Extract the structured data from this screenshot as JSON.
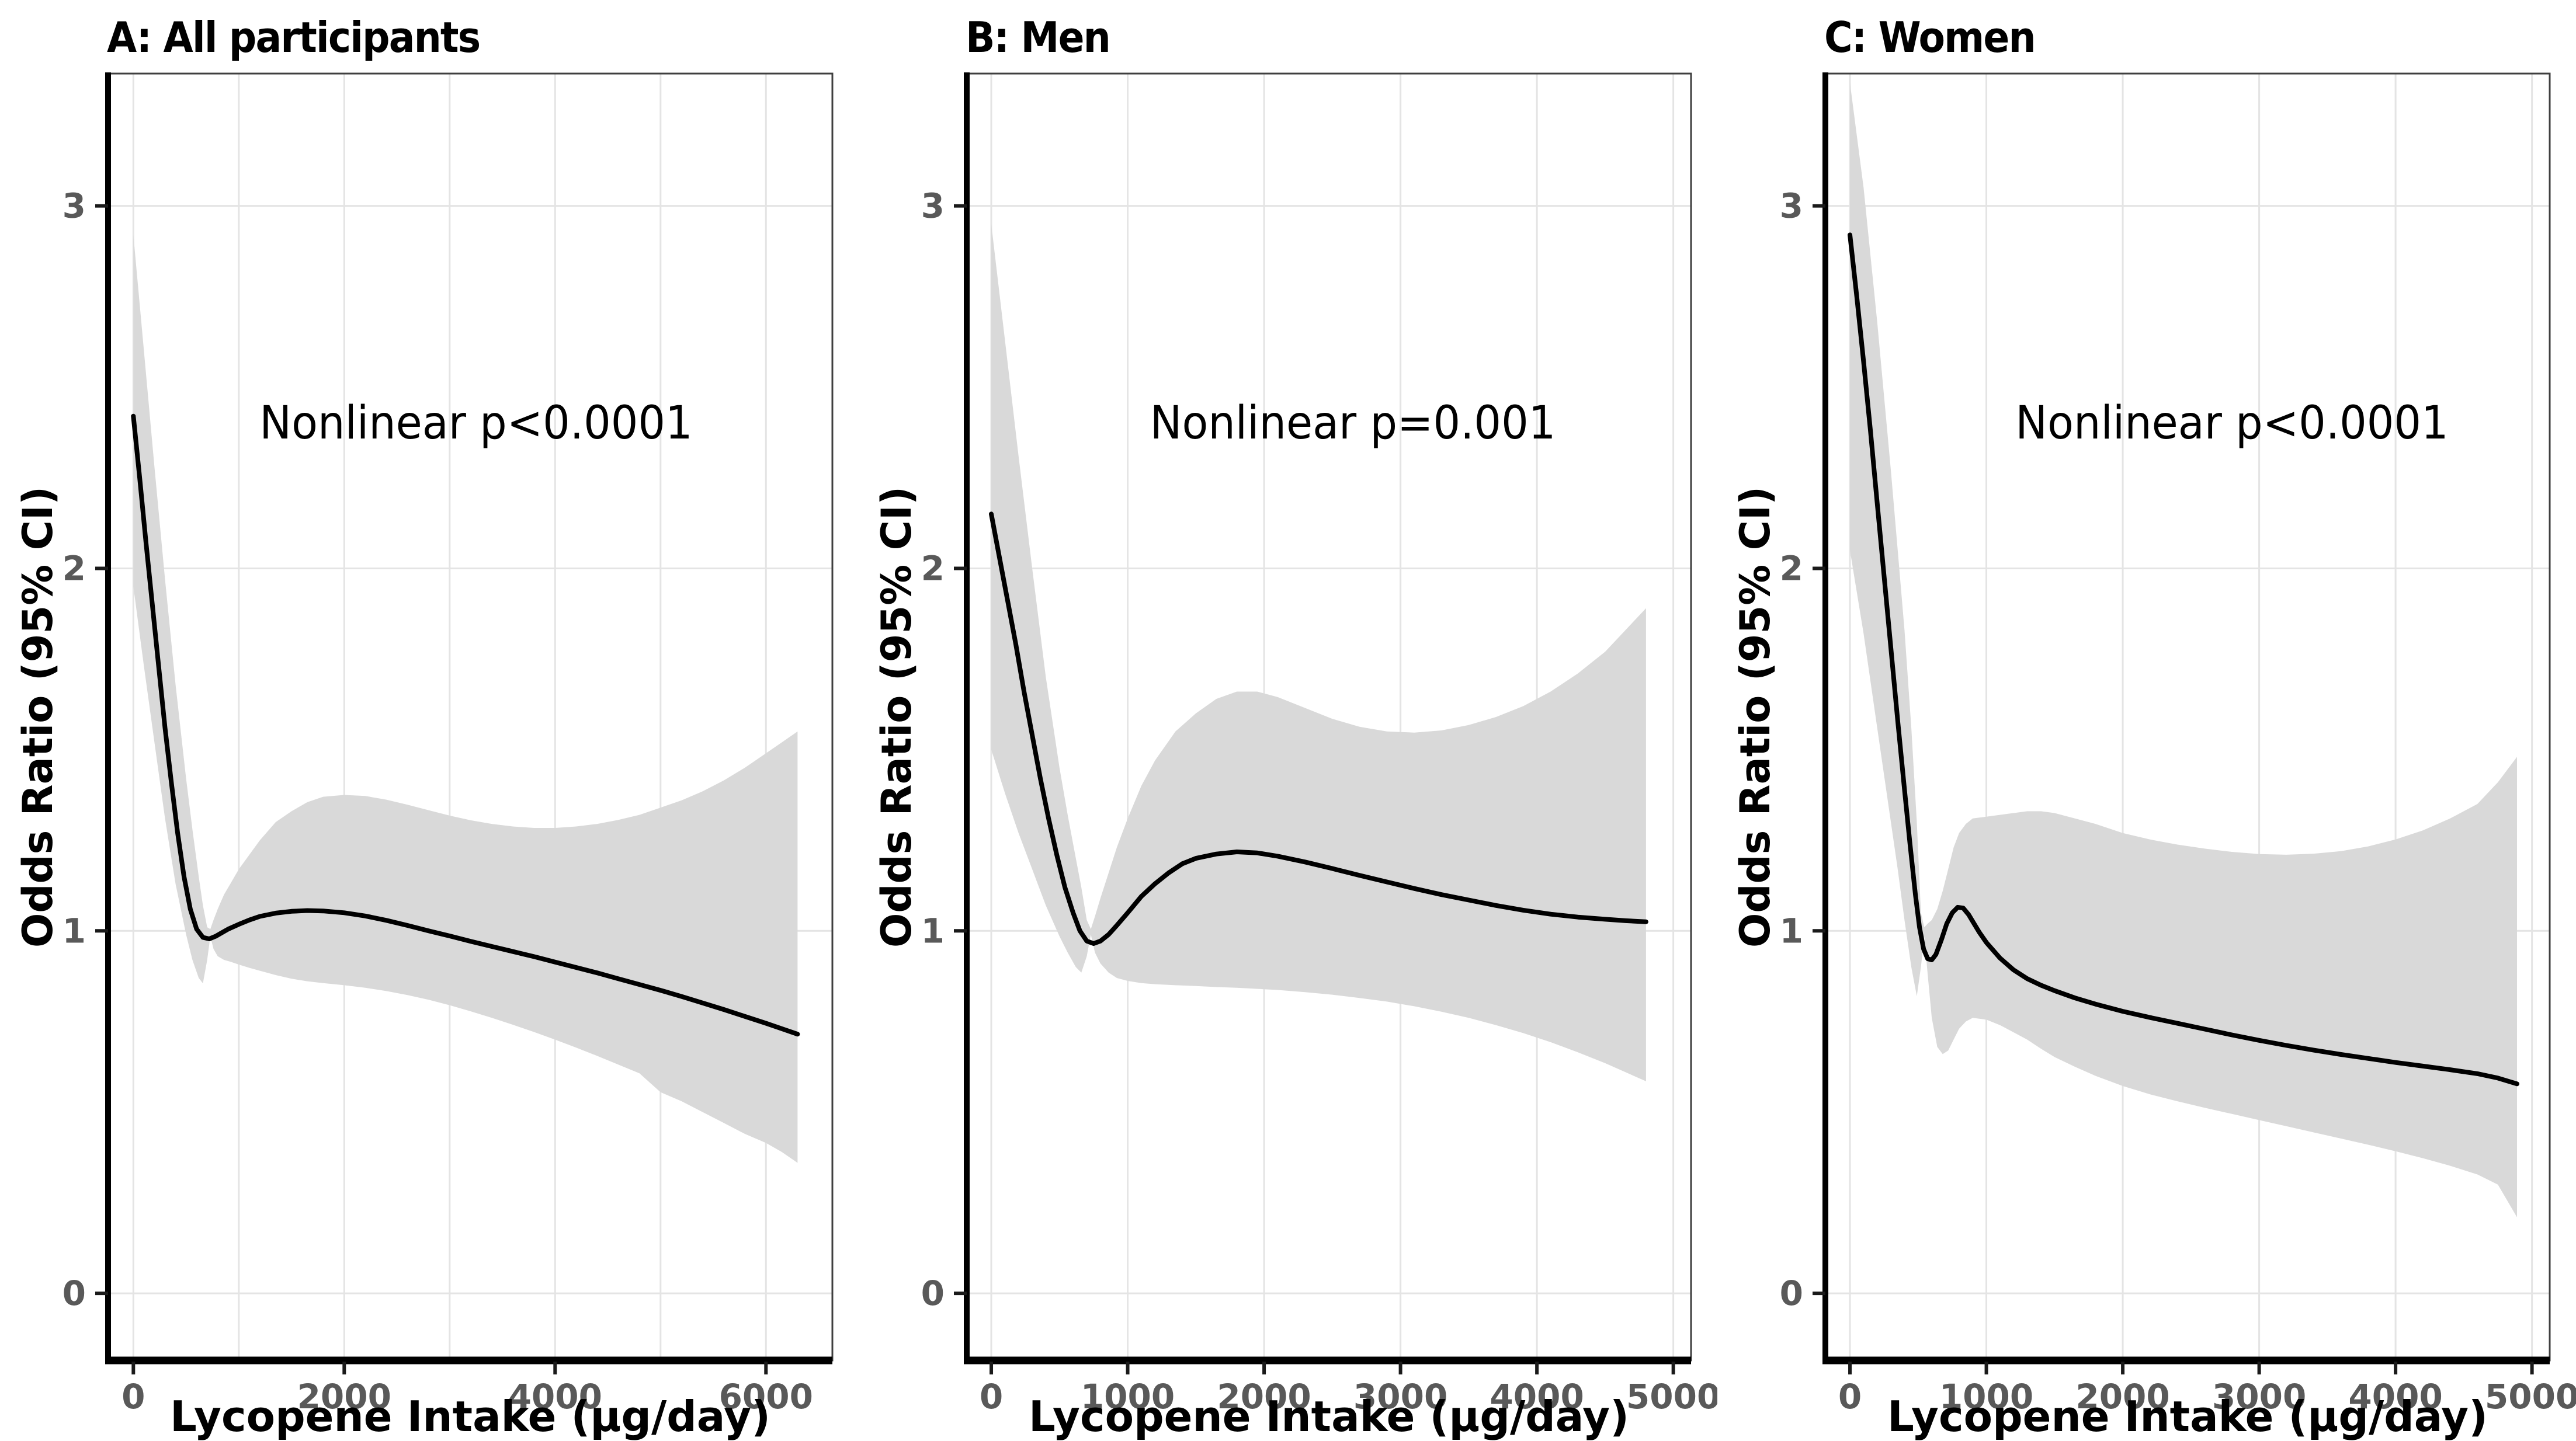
{
  "figure": {
    "x_axis_label": "Lycopene Intake (μg/day)",
    "y_axis_label": "Odds Ratio (95% CI)",
    "colors": {
      "curve": "#000000",
      "ci_band": "#d9d9d9",
      "grid": "#e4e4e4",
      "panel_border": "#3f3f3f",
      "axis": "#000000",
      "tick": "#1a1a1a",
      "tick_label": "#595959"
    }
  },
  "chart_data": [
    {
      "type": "line",
      "title": "A: All participants",
      "annotation": {
        "text": "Nonlinear p<0.0001",
        "x": 3250,
        "y": 2.4
      },
      "xlabel": "Lycopene Intake (μg/day)",
      "ylabel": "Odds Ratio (95% CI)",
      "x_ticks": [
        0,
        2000,
        4000,
        6000
      ],
      "x_gridlines": [
        0,
        1000,
        2000,
        3000,
        4000,
        5000,
        6000
      ],
      "y_ticks": [
        0,
        1,
        2,
        3
      ],
      "xlim": [
        -240,
        6630
      ],
      "ylim": [
        -0.185,
        3.365
      ],
      "grid": true,
      "legend": "none",
      "curve": [
        [
          0,
          2.42
        ],
        [
          60,
          2.25
        ],
        [
          120,
          2.07
        ],
        [
          180,
          1.9
        ],
        [
          240,
          1.73
        ],
        [
          300,
          1.56
        ],
        [
          360,
          1.41
        ],
        [
          420,
          1.27
        ],
        [
          480,
          1.15
        ],
        [
          540,
          1.06
        ],
        [
          600,
          1.005
        ],
        [
          660,
          0.982
        ],
        [
          720,
          0.978
        ],
        [
          780,
          0.985
        ],
        [
          840,
          0.995
        ],
        [
          900,
          1.005
        ],
        [
          1000,
          1.018
        ],
        [
          1100,
          1.03
        ],
        [
          1200,
          1.04
        ],
        [
          1350,
          1.049
        ],
        [
          1500,
          1.054
        ],
        [
          1650,
          1.056
        ],
        [
          1800,
          1.055
        ],
        [
          2000,
          1.05
        ],
        [
          2200,
          1.041
        ],
        [
          2400,
          1.029
        ],
        [
          2600,
          1.015
        ],
        [
          2800,
          1.0
        ],
        [
          3000,
          0.986
        ],
        [
          3200,
          0.971
        ],
        [
          3400,
          0.957
        ],
        [
          3600,
          0.943
        ],
        [
          3800,
          0.929
        ],
        [
          4000,
          0.914
        ],
        [
          4200,
          0.899
        ],
        [
          4400,
          0.884
        ],
        [
          4600,
          0.868
        ],
        [
          4800,
          0.852
        ],
        [
          5000,
          0.836
        ],
        [
          5200,
          0.819
        ],
        [
          5400,
          0.801
        ],
        [
          5600,
          0.783
        ],
        [
          5800,
          0.764
        ],
        [
          6000,
          0.745
        ],
        [
          6150,
          0.73
        ],
        [
          6300,
          0.715
        ]
      ],
      "ci": [
        [
          0,
          1.95,
          2.92
        ],
        [
          100,
          1.73,
          2.6
        ],
        [
          200,
          1.52,
          2.28
        ],
        [
          300,
          1.31,
          1.97
        ],
        [
          400,
          1.13,
          1.68
        ],
        [
          500,
          0.99,
          1.42
        ],
        [
          560,
          0.92,
          1.28
        ],
        [
          620,
          0.87,
          1.15
        ],
        [
          660,
          0.855,
          1.07
        ],
        [
          700,
          0.92,
          1.01
        ],
        [
          730,
          0.985,
          1.005
        ],
        [
          760,
          0.95,
          1.03
        ],
        [
          800,
          0.93,
          1.06
        ],
        [
          860,
          0.92,
          1.1
        ],
        [
          920,
          0.915,
          1.13
        ],
        [
          1000,
          0.907,
          1.17
        ],
        [
          1100,
          0.898,
          1.21
        ],
        [
          1200,
          0.89,
          1.25
        ],
        [
          1350,
          0.878,
          1.3
        ],
        [
          1500,
          0.868,
          1.33
        ],
        [
          1650,
          0.861,
          1.355
        ],
        [
          1800,
          0.856,
          1.37
        ],
        [
          2000,
          0.85,
          1.375
        ],
        [
          2200,
          0.843,
          1.372
        ],
        [
          2400,
          0.834,
          1.362
        ],
        [
          2600,
          0.823,
          1.348
        ],
        [
          2800,
          0.81,
          1.333
        ],
        [
          3000,
          0.795,
          1.318
        ],
        [
          3200,
          0.778,
          1.305
        ],
        [
          3400,
          0.76,
          1.295
        ],
        [
          3600,
          0.741,
          1.288
        ],
        [
          3800,
          0.721,
          1.284
        ],
        [
          4000,
          0.7,
          1.284
        ],
        [
          4200,
          0.678,
          1.288
        ],
        [
          4400,
          0.655,
          1.295
        ],
        [
          4600,
          0.631,
          1.306
        ],
        [
          4800,
          0.607,
          1.32
        ],
        [
          5000,
          0.555,
          1.34
        ],
        [
          5200,
          0.53,
          1.36
        ],
        [
          5400,
          0.5,
          1.385
        ],
        [
          5600,
          0.47,
          1.415
        ],
        [
          5800,
          0.44,
          1.45
        ],
        [
          6000,
          0.415,
          1.49
        ],
        [
          6150,
          0.39,
          1.52
        ],
        [
          6300,
          0.36,
          1.55
        ]
      ]
    },
    {
      "type": "line",
      "title": "B: Men",
      "annotation": {
        "text": "Nonlinear p=0.001",
        "x": 2650,
        "y": 2.4
      },
      "xlabel": "Lycopene Intake (μg/day)",
      "ylabel": "Odds Ratio (95% CI)",
      "x_ticks": [
        0,
        1000,
        2000,
        3000,
        4000,
        5000
      ],
      "x_gridlines": [
        0,
        1000,
        2000,
        3000,
        4000,
        5000
      ],
      "y_ticks": [
        0,
        1,
        2,
        3
      ],
      "xlim": [
        -180,
        5130
      ],
      "ylim": [
        -0.185,
        3.365
      ],
      "grid": true,
      "legend": "none",
      "curve": [
        [
          0,
          2.15
        ],
        [
          60,
          2.03
        ],
        [
          120,
          1.91
        ],
        [
          180,
          1.79
        ],
        [
          240,
          1.66
        ],
        [
          300,
          1.54
        ],
        [
          360,
          1.42
        ],
        [
          420,
          1.31
        ],
        [
          480,
          1.21
        ],
        [
          540,
          1.12
        ],
        [
          600,
          1.05
        ],
        [
          650,
          1.0
        ],
        [
          700,
          0.972
        ],
        [
          750,
          0.965
        ],
        [
          800,
          0.972
        ],
        [
          860,
          0.99
        ],
        [
          920,
          1.015
        ],
        [
          1000,
          1.05
        ],
        [
          1100,
          1.095
        ],
        [
          1200,
          1.13
        ],
        [
          1300,
          1.16
        ],
        [
          1400,
          1.185
        ],
        [
          1500,
          1.2
        ],
        [
          1650,
          1.212
        ],
        [
          1800,
          1.218
        ],
        [
          1950,
          1.215
        ],
        [
          2100,
          1.206
        ],
        [
          2300,
          1.19
        ],
        [
          2500,
          1.172
        ],
        [
          2700,
          1.153
        ],
        [
          2900,
          1.135
        ],
        [
          3100,
          1.117
        ],
        [
          3300,
          1.1
        ],
        [
          3500,
          1.085
        ],
        [
          3700,
          1.07
        ],
        [
          3900,
          1.057
        ],
        [
          4100,
          1.046
        ],
        [
          4300,
          1.038
        ],
        [
          4500,
          1.032
        ],
        [
          4650,
          1.028
        ],
        [
          4800,
          1.025
        ]
      ],
      "ci": [
        [
          0,
          1.5,
          2.95
        ],
        [
          100,
          1.38,
          2.63
        ],
        [
          200,
          1.27,
          2.31
        ],
        [
          300,
          1.17,
          2.0
        ],
        [
          400,
          1.07,
          1.7
        ],
        [
          500,
          0.985,
          1.45
        ],
        [
          560,
          0.94,
          1.32
        ],
        [
          620,
          0.9,
          1.2
        ],
        [
          660,
          0.885,
          1.12
        ],
        [
          700,
          0.93,
          1.03
        ],
        [
          730,
          0.99,
          1.005
        ],
        [
          760,
          0.94,
          1.04
        ],
        [
          800,
          0.91,
          1.09
        ],
        [
          860,
          0.885,
          1.16
        ],
        [
          920,
          0.87,
          1.23
        ],
        [
          1000,
          0.862,
          1.31
        ],
        [
          1100,
          0.856,
          1.4
        ],
        [
          1200,
          0.853,
          1.47
        ],
        [
          1350,
          0.85,
          1.55
        ],
        [
          1500,
          0.848,
          1.6
        ],
        [
          1650,
          0.845,
          1.64
        ],
        [
          1800,
          0.843,
          1.66
        ],
        [
          1950,
          0.84,
          1.66
        ],
        [
          2100,
          0.837,
          1.645
        ],
        [
          2300,
          0.831,
          1.615
        ],
        [
          2500,
          0.824,
          1.585
        ],
        [
          2700,
          0.815,
          1.563
        ],
        [
          2900,
          0.805,
          1.55
        ],
        [
          3100,
          0.792,
          1.547
        ],
        [
          3300,
          0.777,
          1.553
        ],
        [
          3500,
          0.76,
          1.568
        ],
        [
          3700,
          0.74,
          1.59
        ],
        [
          3900,
          0.718,
          1.62
        ],
        [
          4100,
          0.693,
          1.66
        ],
        [
          4300,
          0.665,
          1.71
        ],
        [
          4500,
          0.635,
          1.77
        ],
        [
          4650,
          0.61,
          1.83
        ],
        [
          4800,
          0.585,
          1.89
        ]
      ]
    },
    {
      "type": "line",
      "title": "C: Women",
      "annotation": {
        "text": "Nonlinear p<0.0001",
        "x": 2800,
        "y": 2.4
      },
      "xlabel": "Lycopene Intake (μg/day)",
      "ylabel": "Odds Ratio (95% CI)",
      "x_ticks": [
        0,
        1000,
        2000,
        3000,
        4000,
        5000
      ],
      "x_gridlines": [
        0,
        1000,
        2000,
        3000,
        4000,
        5000
      ],
      "y_ticks": [
        0,
        1,
        2,
        3
      ],
      "xlim": [
        -180,
        5130
      ],
      "ylim": [
        -0.185,
        3.365
      ],
      "grid": true,
      "legend": "none",
      "curve": [
        [
          0,
          2.92
        ],
        [
          50,
          2.75
        ],
        [
          100,
          2.57
        ],
        [
          150,
          2.38
        ],
        [
          200,
          2.18
        ],
        [
          250,
          1.98
        ],
        [
          300,
          1.78
        ],
        [
          350,
          1.58
        ],
        [
          400,
          1.39
        ],
        [
          440,
          1.24
        ],
        [
          480,
          1.1
        ],
        [
          510,
          1.01
        ],
        [
          540,
          0.95
        ],
        [
          570,
          0.923
        ],
        [
          600,
          0.92
        ],
        [
          630,
          0.935
        ],
        [
          670,
          0.975
        ],
        [
          710,
          1.02
        ],
        [
          750,
          1.05
        ],
        [
          790,
          1.065
        ],
        [
          830,
          1.063
        ],
        [
          870,
          1.045
        ],
        [
          910,
          1.02
        ],
        [
          950,
          0.995
        ],
        [
          1000,
          0.968
        ],
        [
          1100,
          0.925
        ],
        [
          1200,
          0.892
        ],
        [
          1300,
          0.868
        ],
        [
          1400,
          0.85
        ],
        [
          1500,
          0.835
        ],
        [
          1650,
          0.815
        ],
        [
          1800,
          0.798
        ],
        [
          2000,
          0.778
        ],
        [
          2200,
          0.761
        ],
        [
          2400,
          0.745
        ],
        [
          2600,
          0.729
        ],
        [
          2800,
          0.713
        ],
        [
          3000,
          0.698
        ],
        [
          3200,
          0.684
        ],
        [
          3400,
          0.671
        ],
        [
          3600,
          0.659
        ],
        [
          3800,
          0.648
        ],
        [
          4000,
          0.637
        ],
        [
          4200,
          0.627
        ],
        [
          4400,
          0.617
        ],
        [
          4600,
          0.606
        ],
        [
          4750,
          0.594
        ],
        [
          4890,
          0.578
        ]
      ],
      "ci": [
        [
          0,
          2.05,
          3.34
        ],
        [
          100,
          1.82,
          3.05
        ],
        [
          200,
          1.56,
          2.68
        ],
        [
          300,
          1.3,
          2.27
        ],
        [
          350,
          1.17,
          2.05
        ],
        [
          400,
          1.03,
          1.83
        ],
        [
          450,
          0.9,
          1.56
        ],
        [
          490,
          0.82,
          1.3
        ],
        [
          520,
          0.9,
          1.05
        ],
        [
          545,
          0.985,
          1.01
        ],
        [
          570,
          0.88,
          1.02
        ],
        [
          600,
          0.76,
          1.03
        ],
        [
          640,
          0.68,
          1.06
        ],
        [
          680,
          0.66,
          1.11
        ],
        [
          720,
          0.67,
          1.17
        ],
        [
          760,
          0.7,
          1.23
        ],
        [
          800,
          0.73,
          1.27
        ],
        [
          850,
          0.75,
          1.295
        ],
        [
          900,
          0.76,
          1.31
        ],
        [
          1000,
          0.755,
          1.315
        ],
        [
          1100,
          0.74,
          1.32
        ],
        [
          1200,
          0.72,
          1.325
        ],
        [
          1300,
          0.7,
          1.33
        ],
        [
          1400,
          0.675,
          1.33
        ],
        [
          1500,
          0.652,
          1.325
        ],
        [
          1650,
          0.625,
          1.31
        ],
        [
          1800,
          0.6,
          1.295
        ],
        [
          2000,
          0.572,
          1.27
        ],
        [
          2200,
          0.549,
          1.252
        ],
        [
          2400,
          0.53,
          1.238
        ],
        [
          2600,
          0.512,
          1.227
        ],
        [
          2800,
          0.495,
          1.218
        ],
        [
          3000,
          0.478,
          1.212
        ],
        [
          3200,
          0.461,
          1.21
        ],
        [
          3400,
          0.444,
          1.213
        ],
        [
          3600,
          0.427,
          1.22
        ],
        [
          3800,
          0.41,
          1.233
        ],
        [
          4000,
          0.392,
          1.252
        ],
        [
          4200,
          0.373,
          1.277
        ],
        [
          4400,
          0.352,
          1.31
        ],
        [
          4600,
          0.328,
          1.35
        ],
        [
          4750,
          0.3,
          1.41
        ],
        [
          4890,
          0.21,
          1.48
        ]
      ]
    }
  ]
}
